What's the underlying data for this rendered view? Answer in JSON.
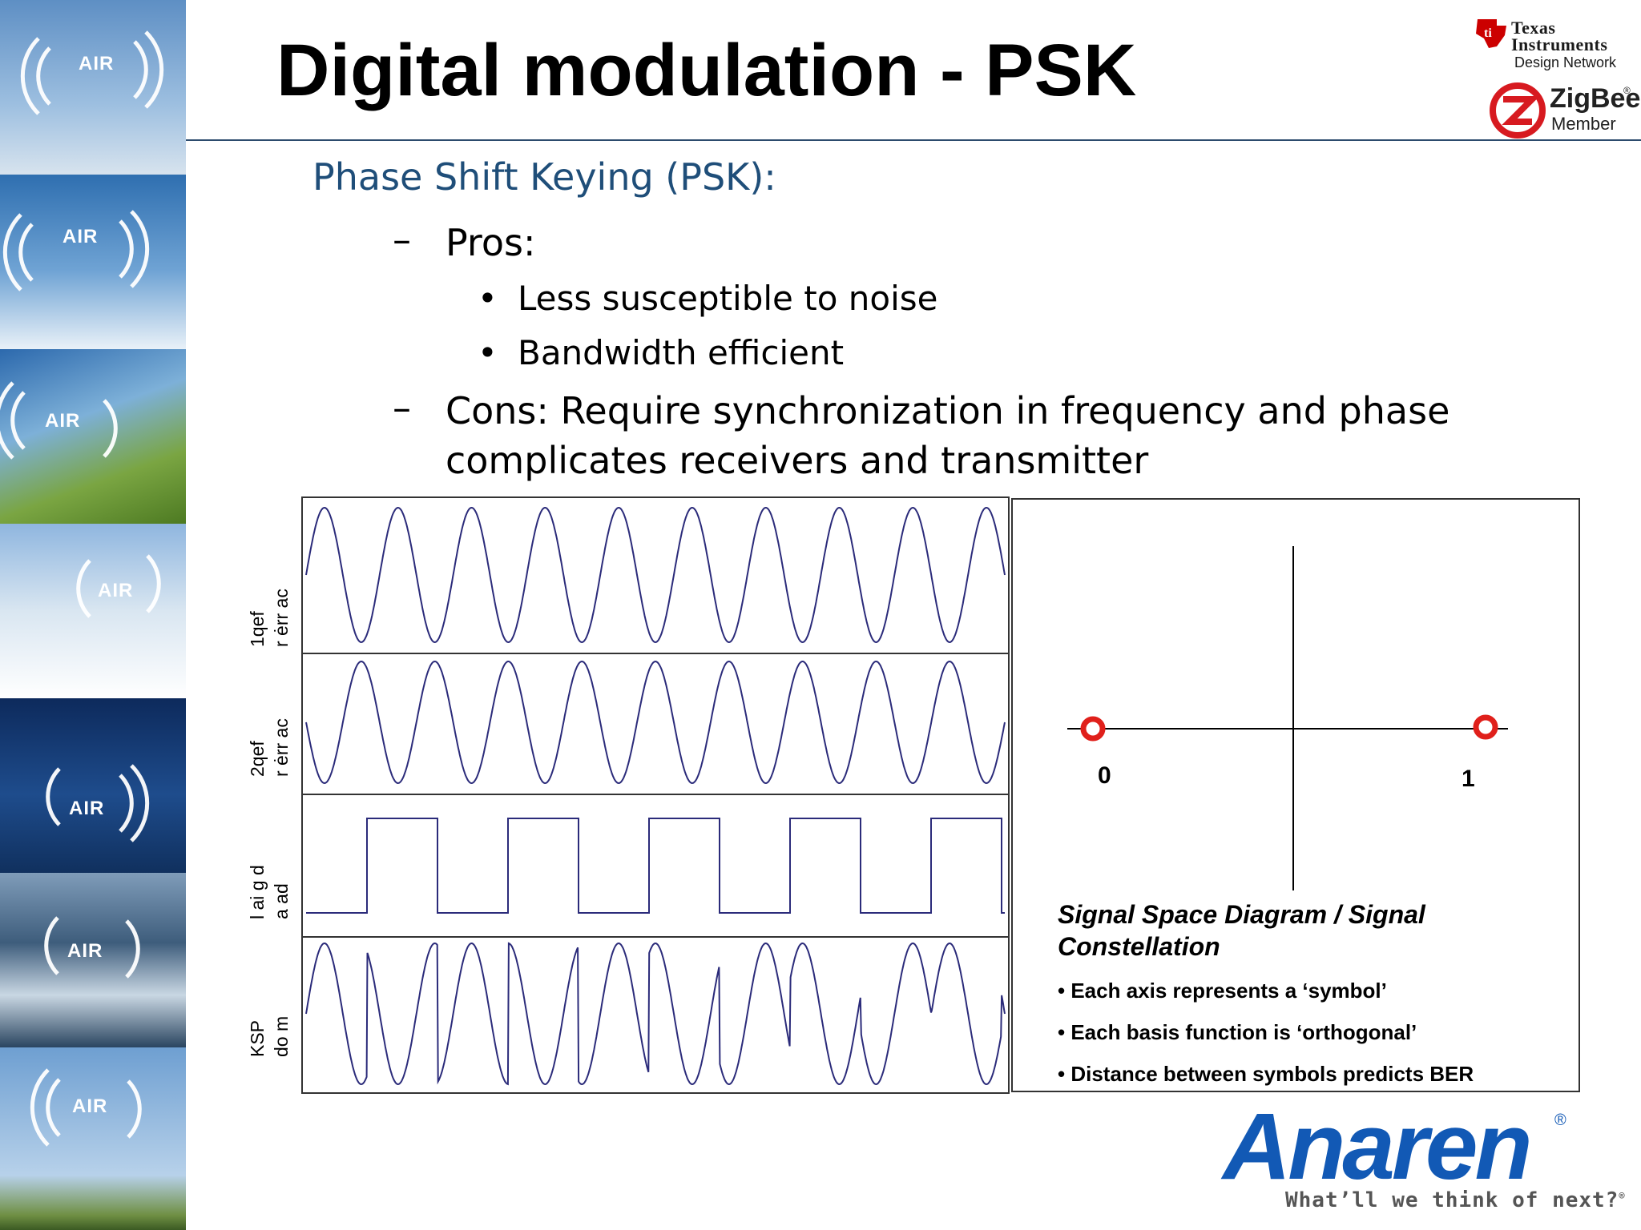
{
  "slide": {
    "title": "Digital modulation - PSK",
    "heading": "Phase Shift Keying (PSK):",
    "pros_label": "Pros:",
    "pros": [
      "Less susceptible to noise",
      "Bandwidth efficient"
    ],
    "cons_line1": "Cons: Require synchronization in frequency and phase",
    "cons_line2": "complicates receivers and transmitter",
    "dash": "–",
    "bullet": "•"
  },
  "waveform_rows": [
    {
      "label_top": "1qef",
      "label_bottom": "r ėrr ac"
    },
    {
      "label_top": "2qef",
      "label_bottom": "r ėrr ac"
    },
    {
      "label_top": "l ai g d",
      "label_bottom": "a ad"
    },
    {
      "label_top": "KSP",
      "label_bottom": "do m"
    }
  ],
  "constellation": {
    "symbol_0": "0",
    "symbol_1": "1",
    "title": "Signal Space Diagram / Signal Constellation",
    "items": [
      "Each axis represents a ‘symbol’",
      "Each basis function is ‘orthogonal’",
      "Distance between symbols predicts BER"
    ],
    "point_color": "#e0201b"
  },
  "logos": {
    "ti_line1": "Texas",
    "ti_line2": "Instruments",
    "ti_sub": "Design Network",
    "zigbee": "ZigBee",
    "zigbee_reg": "®",
    "zigbee_member": "Member",
    "anaren": "Anaren",
    "anaren_reg": "®",
    "anaren_tagline": "What’ll we think of next?",
    "anaren_tag_reg": "®",
    "strip_badge": "AIR"
  },
  "colors": {
    "heading": "#1f4e79",
    "anaren_blue": "#1259b5",
    "waveform": "#2b2b7a",
    "rule": "#2c4b6d"
  }
}
